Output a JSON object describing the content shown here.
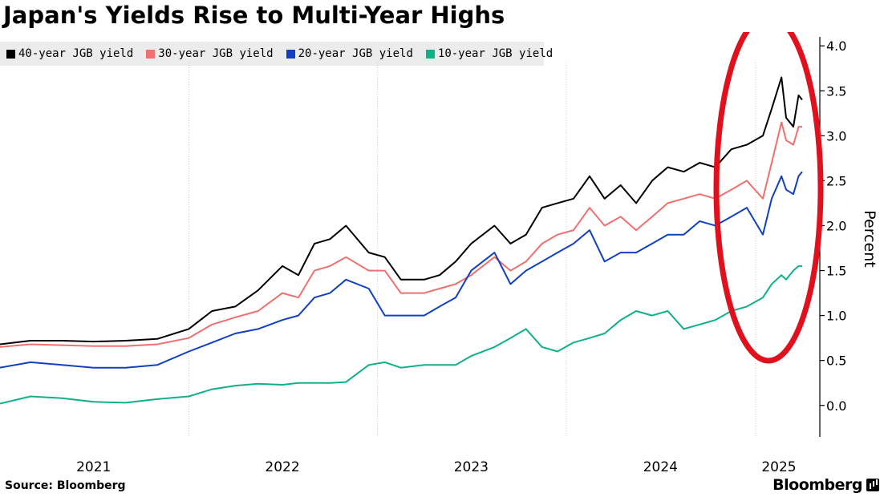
{
  "chart_data": {
    "type": "line",
    "title": "Japan's Yields Rise to Multi-Year Highs",
    "ylabel": "Percent",
    "ylim": [
      -0.35,
      4.1
    ],
    "yticks": [
      "4.0",
      "3.5",
      "3.0",
      "2.5",
      "2.0",
      "1.5",
      "1.0",
      "0.5",
      "0.0"
    ],
    "xlim": [
      "2021-01-01",
      "2025-04-01"
    ],
    "xtick_labels": [
      "2021",
      "2022",
      "2023",
      "2024",
      "2025"
    ],
    "grid": true,
    "legend_position": "top-left",
    "source": "Source: Bloomberg",
    "brand": "Bloomberg",
    "annotation": "red ellipse highlighting early 2025",
    "series": [
      {
        "name": "40-year JGB yield",
        "color": "#000000",
        "points": [
          [
            "2021-01-01",
            0.68
          ],
          [
            "2021-03-01",
            0.72
          ],
          [
            "2021-05-01",
            0.72
          ],
          [
            "2021-07-01",
            0.71
          ],
          [
            "2021-09-01",
            0.72
          ],
          [
            "2021-11-01",
            0.74
          ],
          [
            "2022-01-01",
            0.85
          ],
          [
            "2022-02-15",
            1.05
          ],
          [
            "2022-04-01",
            1.1
          ],
          [
            "2022-05-15",
            1.28
          ],
          [
            "2022-07-01",
            1.55
          ],
          [
            "2022-08-01",
            1.45
          ],
          [
            "2022-09-01",
            1.8
          ],
          [
            "2022-10-01",
            1.85
          ],
          [
            "2022-11-01",
            2.0
          ],
          [
            "2022-12-15",
            1.7
          ],
          [
            "2023-01-15",
            1.65
          ],
          [
            "2023-02-15",
            1.4
          ],
          [
            "2023-04-01",
            1.4
          ],
          [
            "2023-05-01",
            1.45
          ],
          [
            "2023-06-01",
            1.6
          ],
          [
            "2023-07-01",
            1.8
          ],
          [
            "2023-08-15",
            2.0
          ],
          [
            "2023-09-15",
            1.8
          ],
          [
            "2023-10-15",
            1.9
          ],
          [
            "2023-11-15",
            2.2
          ],
          [
            "2023-12-15",
            2.25
          ],
          [
            "2024-01-15",
            2.3
          ],
          [
            "2024-02-15",
            2.55
          ],
          [
            "2024-03-15",
            2.3
          ],
          [
            "2024-04-15",
            2.45
          ],
          [
            "2024-05-15",
            2.25
          ],
          [
            "2024-06-15",
            2.5
          ],
          [
            "2024-07-15",
            2.65
          ],
          [
            "2024-08-15",
            2.6
          ],
          [
            "2024-09-15",
            2.7
          ],
          [
            "2024-10-15",
            2.65
          ],
          [
            "2024-11-15",
            2.85
          ],
          [
            "2024-12-15",
            2.9
          ],
          [
            "2025-01-15",
            3.0
          ],
          [
            "2025-02-01",
            3.3
          ],
          [
            "2025-02-20",
            3.65
          ],
          [
            "2025-03-01",
            3.2
          ],
          [
            "2025-03-15",
            3.1
          ],
          [
            "2025-03-25",
            3.45
          ],
          [
            "2025-04-01",
            3.4
          ]
        ]
      },
      {
        "name": "30-year JGB yield",
        "color": "#f07070",
        "points": [
          [
            "2021-01-01",
            0.65
          ],
          [
            "2021-03-01",
            0.68
          ],
          [
            "2021-05-01",
            0.67
          ],
          [
            "2021-07-01",
            0.66
          ],
          [
            "2021-09-01",
            0.66
          ],
          [
            "2021-11-01",
            0.68
          ],
          [
            "2022-01-01",
            0.75
          ],
          [
            "2022-02-15",
            0.9
          ],
          [
            "2022-04-01",
            0.98
          ],
          [
            "2022-05-15",
            1.05
          ],
          [
            "2022-07-01",
            1.25
          ],
          [
            "2022-08-01",
            1.2
          ],
          [
            "2022-09-01",
            1.5
          ],
          [
            "2022-10-01",
            1.55
          ],
          [
            "2022-11-01",
            1.65
          ],
          [
            "2022-12-15",
            1.5
          ],
          [
            "2023-01-15",
            1.5
          ],
          [
            "2023-02-15",
            1.25
          ],
          [
            "2023-04-01",
            1.25
          ],
          [
            "2023-05-01",
            1.3
          ],
          [
            "2023-06-01",
            1.35
          ],
          [
            "2023-07-01",
            1.45
          ],
          [
            "2023-08-15",
            1.65
          ],
          [
            "2023-09-15",
            1.5
          ],
          [
            "2023-10-15",
            1.6
          ],
          [
            "2023-11-15",
            1.8
          ],
          [
            "2023-12-15",
            1.9
          ],
          [
            "2024-01-15",
            1.95
          ],
          [
            "2024-02-15",
            2.2
          ],
          [
            "2024-03-15",
            2.0
          ],
          [
            "2024-04-15",
            2.1
          ],
          [
            "2024-05-15",
            1.95
          ],
          [
            "2024-06-15",
            2.1
          ],
          [
            "2024-07-15",
            2.25
          ],
          [
            "2024-08-15",
            2.3
          ],
          [
            "2024-09-15",
            2.35
          ],
          [
            "2024-10-15",
            2.3
          ],
          [
            "2024-11-15",
            2.4
          ],
          [
            "2024-12-15",
            2.5
          ],
          [
            "2025-01-15",
            2.3
          ],
          [
            "2025-02-01",
            2.7
          ],
          [
            "2025-02-20",
            3.15
          ],
          [
            "2025-03-01",
            2.95
          ],
          [
            "2025-03-15",
            2.9
          ],
          [
            "2025-03-25",
            3.1
          ],
          [
            "2025-04-01",
            3.1
          ]
        ]
      },
      {
        "name": "20-year JGB yield",
        "color": "#1140c0",
        "points": [
          [
            "2021-01-01",
            0.42
          ],
          [
            "2021-03-01",
            0.48
          ],
          [
            "2021-05-01",
            0.45
          ],
          [
            "2021-07-01",
            0.42
          ],
          [
            "2021-09-01",
            0.42
          ],
          [
            "2021-11-01",
            0.45
          ],
          [
            "2022-01-01",
            0.6
          ],
          [
            "2022-02-15",
            0.7
          ],
          [
            "2022-04-01",
            0.8
          ],
          [
            "2022-05-15",
            0.85
          ],
          [
            "2022-07-01",
            0.95
          ],
          [
            "2022-08-01",
            1.0
          ],
          [
            "2022-09-01",
            1.2
          ],
          [
            "2022-10-01",
            1.25
          ],
          [
            "2022-11-01",
            1.4
          ],
          [
            "2022-12-15",
            1.3
          ],
          [
            "2023-01-15",
            1.0
          ],
          [
            "2023-02-15",
            1.0
          ],
          [
            "2023-04-01",
            1.0
          ],
          [
            "2023-05-01",
            1.1
          ],
          [
            "2023-06-01",
            1.2
          ],
          [
            "2023-07-01",
            1.5
          ],
          [
            "2023-08-15",
            1.7
          ],
          [
            "2023-09-15",
            1.35
          ],
          [
            "2023-10-15",
            1.5
          ],
          [
            "2023-11-15",
            1.6
          ],
          [
            "2023-12-15",
            1.7
          ],
          [
            "2024-01-15",
            1.8
          ],
          [
            "2024-02-15",
            1.95
          ],
          [
            "2024-03-15",
            1.6
          ],
          [
            "2024-04-15",
            1.7
          ],
          [
            "2024-05-15",
            1.7
          ],
          [
            "2024-06-15",
            1.8
          ],
          [
            "2024-07-15",
            1.9
          ],
          [
            "2024-08-15",
            1.9
          ],
          [
            "2024-09-15",
            2.05
          ],
          [
            "2024-10-15",
            2.0
          ],
          [
            "2024-11-15",
            2.1
          ],
          [
            "2024-12-15",
            2.2
          ],
          [
            "2025-01-15",
            1.9
          ],
          [
            "2025-02-01",
            2.3
          ],
          [
            "2025-02-20",
            2.55
          ],
          [
            "2025-03-01",
            2.4
          ],
          [
            "2025-03-15",
            2.35
          ],
          [
            "2025-03-25",
            2.55
          ],
          [
            "2025-04-01",
            2.6
          ]
        ]
      },
      {
        "name": "10-year JGB yield",
        "color": "#10b08a",
        "points": [
          [
            "2021-01-01",
            0.02
          ],
          [
            "2021-03-01",
            0.1
          ],
          [
            "2021-05-01",
            0.08
          ],
          [
            "2021-07-01",
            0.04
          ],
          [
            "2021-09-01",
            0.03
          ],
          [
            "2021-11-01",
            0.07
          ],
          [
            "2022-01-01",
            0.1
          ],
          [
            "2022-02-15",
            0.18
          ],
          [
            "2022-04-01",
            0.22
          ],
          [
            "2022-05-15",
            0.24
          ],
          [
            "2022-07-01",
            0.23
          ],
          [
            "2022-08-01",
            0.25
          ],
          [
            "2022-09-01",
            0.25
          ],
          [
            "2022-10-01",
            0.25
          ],
          [
            "2022-11-01",
            0.26
          ],
          [
            "2022-12-15",
            0.45
          ],
          [
            "2023-01-15",
            0.48
          ],
          [
            "2023-02-15",
            0.42
          ],
          [
            "2023-04-01",
            0.45
          ],
          [
            "2023-05-01",
            0.45
          ],
          [
            "2023-06-01",
            0.45
          ],
          [
            "2023-07-01",
            0.55
          ],
          [
            "2023-08-15",
            0.65
          ],
          [
            "2023-09-15",
            0.75
          ],
          [
            "2023-10-15",
            0.85
          ],
          [
            "2023-11-15",
            0.65
          ],
          [
            "2023-12-15",
            0.6
          ],
          [
            "2024-01-15",
            0.7
          ],
          [
            "2024-02-15",
            0.75
          ],
          [
            "2024-03-15",
            0.8
          ],
          [
            "2024-04-15",
            0.95
          ],
          [
            "2024-05-15",
            1.05
          ],
          [
            "2024-06-15",
            1.0
          ],
          [
            "2024-07-15",
            1.05
          ],
          [
            "2024-08-15",
            0.85
          ],
          [
            "2024-09-15",
            0.9
          ],
          [
            "2024-10-15",
            0.95
          ],
          [
            "2024-11-15",
            1.05
          ],
          [
            "2024-12-15",
            1.1
          ],
          [
            "2025-01-15",
            1.2
          ],
          [
            "2025-02-01",
            1.35
          ],
          [
            "2025-02-20",
            1.45
          ],
          [
            "2025-03-01",
            1.4
          ],
          [
            "2025-03-15",
            1.5
          ],
          [
            "2025-03-25",
            1.55
          ],
          [
            "2025-04-01",
            1.55
          ]
        ]
      }
    ]
  }
}
